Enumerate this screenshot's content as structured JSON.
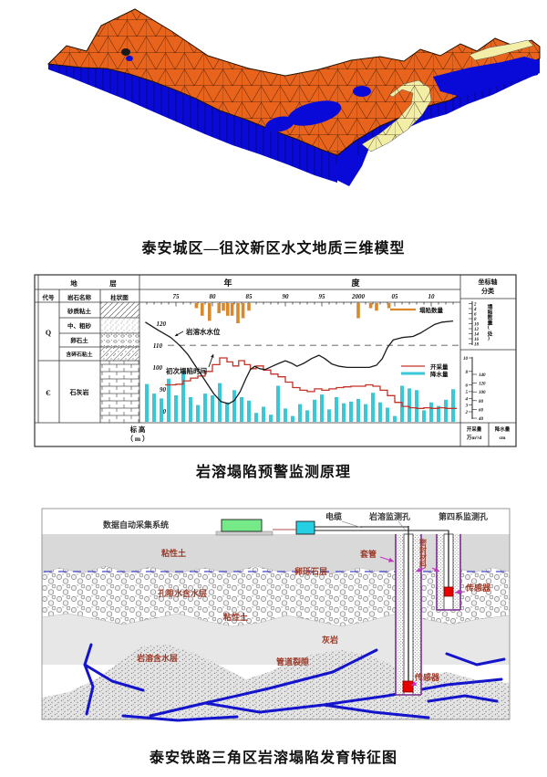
{
  "theme": {
    "model_surface": "#e8641c",
    "model_side": "#0a0ad8",
    "model_band": "#f2eea6",
    "collapse_bar": "#d9882b",
    "water_line": "#1a1a1a",
    "mining_line": "#c23328",
    "rain_bar": "#38c8d8",
    "label_red": "#9c3a28",
    "arrow_magenta": "#c136c1",
    "casing_purple": "#7a2f8f",
    "conduit_blue": "#1414cc"
  },
  "figure1": {
    "caption": "泰安城区—徂汶新区水文地质三维模型"
  },
  "figure2": {
    "caption": "岩溶塌陷预警监测原理",
    "table": {
      "header_1": "地",
      "header_2": "层",
      "col_code": "代号",
      "col_rock": "岩石名称",
      "col_column": "柱状图",
      "code_q": "Q",
      "code_e": "Є",
      "row_q1": "砂质粘土",
      "row_q2": "中、粗砂",
      "row_q3": "卵石土",
      "row_q4": "含碎石粘土",
      "row_e": "石灰岩",
      "footer_line1": "标  高",
      "footer_line2": "（ m ）"
    },
    "axis": {
      "year_label_1": "年",
      "year_label_2": "度",
      "x_ticks": [
        "75",
        "80",
        "85",
        "90",
        "95",
        "2000",
        "05",
        "10"
      ],
      "elev_ticks": [
        "120",
        "110",
        "100",
        "90",
        "80"
      ]
    },
    "annotations": {
      "water_level": "岩溶水水位",
      "first_collapse": "初次塌陷时间"
    },
    "legend": {
      "collapse": "塌陷数量",
      "mining": "开采量",
      "rain": "降水量"
    },
    "panel": {
      "title_1": "坐标轴",
      "title_2": "分类",
      "collapse_scale_label": "塌陷数量(处)",
      "collapse_ticks": [
        "2",
        "4",
        "6",
        "8",
        "10",
        "12",
        "14",
        "16",
        "18"
      ],
      "mining_ticks": [
        "10",
        "8",
        "6",
        "5",
        "4",
        "3",
        "2"
      ],
      "rain_ticks": [
        "140",
        "120",
        "100",
        "80",
        "60",
        "40"
      ],
      "mining_unit_1": "开采量",
      "mining_unit_2": "万m³/d",
      "rain_unit_1": "降水量",
      "rain_unit_2": "cm"
    },
    "chart_data": {
      "type": "composite",
      "title": "岩溶塌陷预警监测原理",
      "x_axis": {
        "label": "年度",
        "tick_years": [
          1975,
          1980,
          1985,
          1990,
          1995,
          2000,
          2005,
          2010
        ],
        "range": [
          1971,
          2013
        ]
      },
      "y_axes": [
        {
          "name": "标高",
          "unit": "m",
          "ticks": [
            120,
            110,
            100,
            90,
            80
          ]
        },
        {
          "name": "塌陷数量",
          "unit": "处",
          "ticks": [
            2,
            4,
            6,
            8,
            10,
            12,
            14,
            16,
            18
          ]
        },
        {
          "name": "开采量",
          "unit": "万m³/d",
          "ticks": [
            10,
            8,
            6,
            5,
            4,
            3,
            2
          ]
        },
        {
          "name": "降水量",
          "unit": "cm",
          "ticks": [
            140,
            120,
            100,
            80,
            60,
            40
          ]
        }
      ],
      "reference_line": {
        "style": "dashed",
        "elevation_m": 110
      },
      "series": [
        {
          "name": "塌陷数量",
          "type": "bar",
          "axis": "处",
          "color_var": "collapse_bar",
          "points": [
            [
              1977.8,
              2
            ],
            [
              1978.6,
              5
            ],
            [
              1979.6,
              7
            ],
            [
              1980.9,
              4
            ],
            [
              1981.5,
              3
            ],
            [
              1982.1,
              5
            ],
            [
              1982.7,
              5
            ],
            [
              1983.5,
              8
            ],
            [
              1984.2,
              6
            ],
            [
              1985,
              3
            ],
            [
              2000,
              6
            ],
            [
              2001.7,
              2
            ],
            [
              2002.5,
              3
            ],
            [
              2004.2,
              2
            ]
          ]
        },
        {
          "name": "降水量",
          "type": "bar",
          "axis": "cm",
          "color_var": "rain_bar",
          "points": [
            [
              1971,
              118
            ],
            [
              1972,
              96
            ],
            [
              1973,
              85
            ],
            [
              1974,
              130
            ],
            [
              1975,
              92
            ],
            [
              1976,
              148
            ],
            [
              1977,
              88
            ],
            [
              1978,
              70
            ],
            [
              1979,
              96
            ],
            [
              1980,
              92
            ],
            [
              1981,
              120
            ],
            [
              1982,
              76
            ],
            [
              1983,
              104
            ],
            [
              1984,
              88
            ],
            [
              1985,
              80
            ],
            [
              1986,
              52
            ],
            [
              1987,
              66
            ],
            [
              1988,
              48
            ],
            [
              1989,
              114
            ],
            [
              1990,
              62
            ],
            [
              1991,
              45
            ],
            [
              1992,
              72
            ],
            [
              1993,
              58
            ],
            [
              1994,
              82
            ],
            [
              1995,
              94
            ],
            [
              1996,
              60
            ],
            [
              1997,
              88
            ],
            [
              1998,
              74
            ],
            [
              1999,
              78
            ],
            [
              2000,
              84
            ],
            [
              2001,
              72
            ],
            [
              2002,
              98
            ],
            [
              2003,
              76
            ],
            [
              2004,
              64
            ],
            [
              2005,
              45
            ],
            [
              2006,
              114
            ],
            [
              2007,
              108
            ],
            [
              2008,
              104
            ],
            [
              2009,
              58
            ],
            [
              2010,
              76
            ],
            [
              2011,
              68
            ],
            [
              2012,
              82
            ],
            [
              2013,
              106
            ]
          ]
        },
        {
          "name": "开采量",
          "type": "step-line",
          "axis": "万m³/d",
          "color_var": "mining_line",
          "points": [
            [
              1973.5,
              6
            ],
            [
              1975,
              6.1
            ],
            [
              1976,
              6.6
            ],
            [
              1977,
              7
            ],
            [
              1978,
              7.3
            ],
            [
              1979,
              8
            ],
            [
              1980,
              9
            ],
            [
              1981,
              10
            ],
            [
              1982,
              9.4
            ],
            [
              1982.8,
              8.8
            ],
            [
              1983.6,
              9.6
            ],
            [
              1984.4,
              9
            ],
            [
              1985.2,
              8.4
            ],
            [
              1986,
              8.8
            ],
            [
              1987,
              8.2
            ],
            [
              1988,
              7.6
            ],
            [
              1989,
              7.2
            ],
            [
              1990,
              6.4
            ],
            [
              1991,
              5.6
            ],
            [
              1992,
              5.2
            ],
            [
              1993,
              5
            ],
            [
              1994,
              5.4
            ],
            [
              1995,
              5.2
            ],
            [
              1996,
              5.4
            ],
            [
              1997,
              5.6
            ],
            [
              1998,
              5.7
            ],
            [
              1999,
              5.8
            ],
            [
              2000,
              5.8
            ],
            [
              2001,
              6
            ],
            [
              2002,
              5.8
            ],
            [
              2003,
              5.2
            ],
            [
              2004,
              4.4
            ],
            [
              2005,
              3.4
            ],
            [
              2006,
              2.8
            ],
            [
              2007,
              2.6
            ],
            [
              2008,
              2.5
            ],
            [
              2009,
              2.6
            ],
            [
              2010,
              2.5
            ],
            [
              2011,
              2.6
            ],
            [
              2012,
              2.5
            ],
            [
              2013,
              2.5
            ]
          ]
        },
        {
          "name": "岩溶水水位",
          "type": "line",
          "axis": "m",
          "color_var": "water_line",
          "points": [
            [
              1970.8,
              120.5
            ],
            [
              1972.5,
              117
            ],
            [
              1974.3,
              113.5
            ],
            [
              1975.5,
              110
            ],
            [
              1976.6,
              106
            ],
            [
              1977.8,
              100
            ],
            [
              1979,
              94
            ],
            [
              1980.2,
              88
            ],
            [
              1981.2,
              84.5
            ],
            [
              1982.2,
              83.5
            ],
            [
              1983,
              85
            ],
            [
              1983.8,
              89
            ],
            [
              1984.6,
              95
            ],
            [
              1985.2,
              99
            ],
            [
              1985.8,
              100.5
            ],
            [
              1986.4,
              99.5
            ],
            [
              1987.2,
              99
            ],
            [
              1988.2,
              100.5
            ],
            [
              1989.2,
              102
            ],
            [
              1990,
              103
            ],
            [
              1990.8,
              102
            ],
            [
              1991.6,
              100.5
            ],
            [
              1992.6,
              102
            ],
            [
              1993.6,
              104
            ],
            [
              1994.6,
              105.5
            ],
            [
              1995.4,
              104
            ],
            [
              1996.4,
              101.5
            ],
            [
              1997.4,
              100.5
            ],
            [
              1998.5,
              100
            ],
            [
              2000,
              100
            ],
            [
              2001.5,
              100
            ],
            [
              2002.5,
              101
            ],
            [
              2003.3,
              104
            ],
            [
              2004,
              109
            ],
            [
              2004.8,
              112.5
            ],
            [
              2006,
              113.5
            ],
            [
              2007.5,
              114
            ],
            [
              2008.5,
              115.5
            ],
            [
              2009.5,
              117.5
            ],
            [
              2010.5,
              119.5
            ],
            [
              2011.5,
              120.5
            ],
            [
              2013,
              121
            ]
          ]
        }
      ]
    }
  },
  "figure3": {
    "caption": "泰安铁路三角区岩溶塌陷发育特征图",
    "labels": {
      "system": "数据自动采集系统",
      "cable": "电缆",
      "karst_hole": "岩溶监测孔",
      "quaternary_hole": "第四系监测孔",
      "casing": "套管",
      "sealing": "密封材料",
      "sensor_upper": "传感器",
      "sensor_lower": "传感器",
      "clay_top": "粘性土",
      "pore_aquifer": "孔隙水含水层",
      "gravel_layer": "卵砾石层",
      "clay_mid": "粘性土",
      "limestone": "灰岩",
      "karst_aquifer": "岩溶含水层",
      "conduit_fissure": "管道裂隙"
    }
  }
}
